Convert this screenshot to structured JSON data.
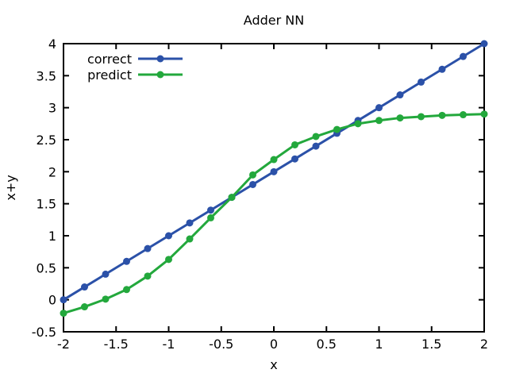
{
  "page": {
    "background": "#ffffff",
    "text_color": "#000000"
  },
  "chart_data": {
    "type": "line",
    "title": "Adder NN",
    "xlabel": "x",
    "ylabel": "x+y",
    "xlim": [
      -2,
      2
    ],
    "ylim": [
      -0.5,
      4
    ],
    "xticks": [
      "-2",
      "-1.5",
      "-1",
      "-0.5",
      "0",
      "0.5",
      "1",
      "1.5",
      "2"
    ],
    "xtick_values": [
      -2,
      -1.5,
      -1,
      -0.5,
      0,
      0.5,
      1,
      1.5,
      2
    ],
    "yticks": [
      "-0.5",
      "0",
      "0.5",
      "1",
      "1.5",
      "2",
      "2.5",
      "3",
      "3.5",
      "4"
    ],
    "ytick_values": [
      -0.5,
      0,
      0.5,
      1,
      1.5,
      2,
      2.5,
      3,
      3.5,
      4
    ],
    "grid": false,
    "legend_position": "top-left-inside",
    "axis_color": "#000000",
    "x": [
      -2,
      -1.8,
      -1.6,
      -1.4,
      -1.2,
      -1,
      -0.8,
      -0.6,
      -0.4,
      -0.2,
      0,
      0.2,
      0.4,
      0.6,
      0.8,
      1,
      1.2,
      1.4,
      1.6,
      1.8,
      2
    ],
    "series": [
      {
        "name": "correct",
        "color": "#2b51a8",
        "marker": "circle",
        "values": [
          0,
          0.2,
          0.4,
          0.6,
          0.8,
          1,
          1.2,
          1.4,
          1.6,
          1.8,
          2,
          2.2,
          2.4,
          2.6,
          2.8,
          3,
          3.2,
          3.4,
          3.6,
          3.8,
          4
        ]
      },
      {
        "name": "predict",
        "color": "#23a83c",
        "marker": "circle",
        "values": [
          -0.21,
          -0.11,
          0.01,
          0.16,
          0.37,
          0.63,
          0.95,
          1.28,
          1.6,
          1.95,
          2.19,
          2.42,
          2.55,
          2.66,
          2.75,
          2.8,
          2.84,
          2.86,
          2.88,
          2.89,
          2.9
        ]
      }
    ]
  }
}
